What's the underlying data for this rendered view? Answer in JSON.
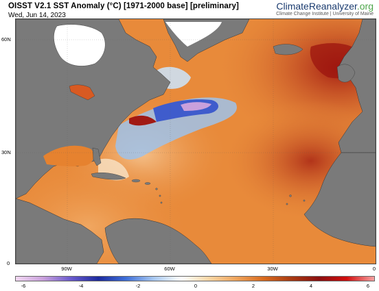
{
  "header": {
    "title": "OISST V2.1 SST Anomaly (°C) [1971-2000 base] [preliminary]",
    "date": "Wed, Jun 14, 2023",
    "brand_main": "ClimateReanalyzer",
    "brand_suffix": ".org",
    "brand_sub": "Climate Change Institute | University of Maine"
  },
  "map": {
    "region": "North Atlantic",
    "lat_ticks": [
      "60N",
      "30N",
      "0"
    ],
    "lon_ticks": [
      "90W",
      "60W",
      "30W",
      "0"
    ],
    "land_color": "#7a7a7a",
    "ice_color": "#ffffff"
  },
  "colorbar": {
    "ticks": [
      "-6",
      "-4",
      "-2",
      "0",
      "2",
      "4",
      "6"
    ],
    "colors": [
      "#f2d8f2",
      "#c9a0dc",
      "#6a5acd",
      "#1c2a9e",
      "#3f6fd8",
      "#a8c8f0",
      "#ffffff",
      "#f9d7a6",
      "#eea45c",
      "#d86a1e",
      "#a83a12",
      "#8b0f0f",
      "#d10e0e",
      "#f7a1a1"
    ]
  }
}
